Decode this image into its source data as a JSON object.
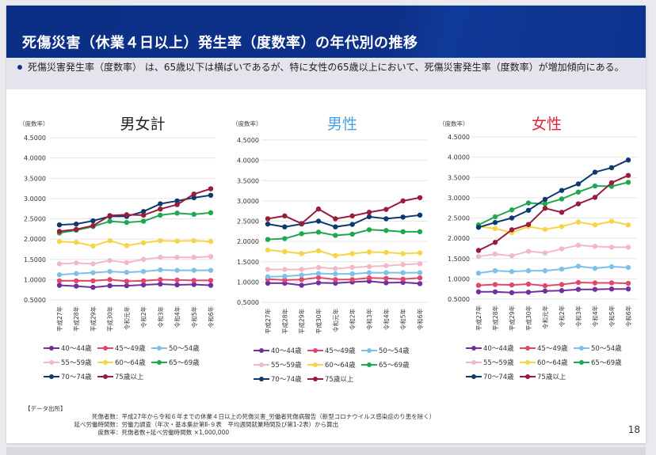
{
  "header": {
    "title": "死傷災害（休業４日以上）発生率（度数率）の年代別の推移"
  },
  "summary": {
    "text": "死傷災害発生率（度数率） は、65歳以下は横ばいであるが、特に女性の65歳以上において、死傷災害発生率（度数率）が増加傾向にある。"
  },
  "colors": {
    "header_bg": "#0d2f88",
    "title_total": "#222222",
    "title_male": "#4a9fe0",
    "title_female": "#e0243c"
  },
  "chart_data": [
    {
      "type": "line",
      "title": "男女計",
      "ylabel": "（度数率）",
      "xlabel": "",
      "ylim": [
        0.5,
        4.5
      ],
      "yticks": [
        "4.5000",
        "4.0000",
        "3.5000",
        "3.0000",
        "2.5000",
        "2.0000",
        "1.5000",
        "1.0000",
        "0.5000"
      ],
      "grid": true,
      "legend": "bottom",
      "categories": [
        "平成27年",
        "平成28年",
        "平成29年",
        "平成30年",
        "令和元年",
        "令和2年",
        "令和3年",
        "令和4年",
        "令和5年",
        "令和6年"
      ],
      "series": [
        {
          "name": "40～44歳",
          "color": "#7030a0",
          "values": [
            0.86,
            0.84,
            0.81,
            0.85,
            0.85,
            0.87,
            0.89,
            0.87,
            0.88,
            0.86
          ]
        },
        {
          "name": "45～49歳",
          "color": "#e0476b",
          "values": [
            0.97,
            0.97,
            0.97,
            1.0,
            0.96,
            0.97,
            1.0,
            0.99,
            0.98,
            0.98
          ]
        },
        {
          "name": "50～54歳",
          "color": "#7ec0ea",
          "values": [
            1.12,
            1.15,
            1.17,
            1.2,
            1.18,
            1.2,
            1.24,
            1.23,
            1.23,
            1.23
          ]
        },
        {
          "name": "55～59歳",
          "color": "#f2b8c8",
          "values": [
            1.39,
            1.41,
            1.39,
            1.47,
            1.42,
            1.5,
            1.55,
            1.55,
            1.55,
            1.57
          ]
        },
        {
          "name": "60～64歳",
          "color": "#f5d547",
          "values": [
            1.94,
            1.92,
            1.83,
            1.96,
            1.84,
            1.91,
            1.96,
            1.95,
            1.96,
            1.94
          ]
        },
        {
          "name": "65～69歳",
          "color": "#1fa84f",
          "values": [
            2.15,
            2.22,
            2.31,
            2.44,
            2.41,
            2.44,
            2.59,
            2.64,
            2.61,
            2.65
          ]
        },
        {
          "name": "70～74歳",
          "color": "#0d3a6e",
          "values": [
            2.35,
            2.37,
            2.45,
            2.56,
            2.56,
            2.68,
            2.87,
            2.94,
            3.02,
            3.08
          ]
        },
        {
          "name": "75歳以上",
          "color": "#9b1b3c",
          "values": [
            2.19,
            2.24,
            2.33,
            2.58,
            2.6,
            2.59,
            2.74,
            2.85,
            3.11,
            3.24
          ]
        }
      ]
    },
    {
      "type": "line",
      "title": "男性",
      "ylabel": "（度数率）",
      "xlabel": "",
      "ylim": [
        0.5,
        4.5
      ],
      "yticks": [
        "4.5000",
        "4.0000",
        "3.5000",
        "3.0000",
        "2.5000",
        "2.0000",
        "1.5000",
        "1.0000",
        "0.5000"
      ],
      "grid": true,
      "legend": "bottom",
      "categories": [
        "平成27年",
        "平成28年",
        "平成29年",
        "平成30年",
        "令和元年",
        "令和2年",
        "令和3年",
        "令和4年",
        "令和5年",
        "令和6年"
      ],
      "series": [
        {
          "name": "40～44歳",
          "color": "#7030a0",
          "values": [
            0.97,
            0.97,
            0.92,
            0.98,
            0.97,
            1.0,
            1.02,
            0.98,
            0.99,
            0.96
          ]
        },
        {
          "name": "45～49歳",
          "color": "#e0476b",
          "values": [
            1.07,
            1.05,
            1.06,
            1.11,
            1.06,
            1.06,
            1.1,
            1.09,
            1.07,
            1.1
          ]
        },
        {
          "name": "50～54歳",
          "color": "#7ec0ea",
          "values": [
            1.13,
            1.14,
            1.17,
            1.21,
            1.2,
            1.2,
            1.23,
            1.23,
            1.23,
            1.23
          ]
        },
        {
          "name": "55～59歳",
          "color": "#f2b8c8",
          "values": [
            1.31,
            1.31,
            1.31,
            1.36,
            1.33,
            1.36,
            1.38,
            1.4,
            1.43,
            1.45
          ]
        },
        {
          "name": "60～64歳",
          "color": "#f5d547",
          "values": [
            1.79,
            1.75,
            1.7,
            1.77,
            1.65,
            1.7,
            1.74,
            1.73,
            1.7,
            1.72
          ]
        },
        {
          "name": "65～69歳",
          "color": "#1fa84f",
          "values": [
            2.05,
            2.07,
            2.19,
            2.23,
            2.15,
            2.18,
            2.29,
            2.27,
            2.24,
            2.24
          ]
        },
        {
          "name": "70～74歳",
          "color": "#0d3a6e",
          "values": [
            2.43,
            2.36,
            2.43,
            2.5,
            2.36,
            2.42,
            2.61,
            2.56,
            2.6,
            2.65
          ]
        },
        {
          "name": "75歳以上",
          "color": "#9b1b3c",
          "values": [
            2.56,
            2.63,
            2.44,
            2.8,
            2.56,
            2.63,
            2.72,
            2.79,
            3.0,
            3.08
          ]
        }
      ]
    },
    {
      "type": "line",
      "title": "女性",
      "ylabel": "（度数率）",
      "xlabel": "",
      "ylim": [
        0.5,
        4.5
      ],
      "yticks": [
        "4.5000",
        "4.0000",
        "3.5000",
        "3.0000",
        "2.5000",
        "2.0000",
        "1.5000",
        "1.0000",
        "0.5000"
      ],
      "grid": true,
      "legend": "bottom",
      "categories": [
        "平成27年",
        "平成28年",
        "平成29年",
        "平成30年",
        "令和元年",
        "令和2年",
        "令和3年",
        "令和4年",
        "令和5年",
        "令和6年"
      ],
      "series": [
        {
          "name": "40～44歳",
          "color": "#7030a0",
          "values": [
            0.68,
            0.68,
            0.66,
            0.67,
            0.7,
            0.71,
            0.74,
            0.74,
            0.75,
            0.75
          ]
        },
        {
          "name": "45～49歳",
          "color": "#e0476b",
          "values": [
            0.84,
            0.86,
            0.85,
            0.87,
            0.83,
            0.86,
            0.91,
            0.9,
            0.9,
            0.89
          ]
        },
        {
          "name": "50～54歳",
          "color": "#7ec0ea",
          "values": [
            1.14,
            1.2,
            1.18,
            1.2,
            1.2,
            1.24,
            1.31,
            1.26,
            1.3,
            1.28
          ]
        },
        {
          "name": "55～59歳",
          "color": "#f2b8c8",
          "values": [
            1.55,
            1.61,
            1.57,
            1.68,
            1.64,
            1.74,
            1.83,
            1.8,
            1.78,
            1.78
          ]
        },
        {
          "name": "60～64歳",
          "color": "#f5d547",
          "values": [
            2.29,
            2.24,
            2.14,
            2.29,
            2.22,
            2.29,
            2.4,
            2.33,
            2.42,
            2.33
          ]
        },
        {
          "name": "65～69歳",
          "color": "#1fa84f",
          "values": [
            2.33,
            2.53,
            2.7,
            2.87,
            2.85,
            2.97,
            3.14,
            3.29,
            3.28,
            3.38
          ]
        },
        {
          "name": "70～74歳",
          "color": "#0d3a6e",
          "values": [
            2.27,
            2.39,
            2.5,
            2.69,
            2.96,
            3.18,
            3.34,
            3.63,
            3.74,
            3.93
          ]
        },
        {
          "name": "75歳以上",
          "color": "#9b1b3c",
          "values": [
            1.7,
            1.9,
            2.21,
            2.34,
            2.74,
            2.64,
            2.85,
            3.01,
            3.37,
            3.55
          ]
        }
      ]
    }
  ],
  "source": {
    "heading": "【データ出所】",
    "lines": [
      {
        "label": "死傷者数",
        "text": "：平成27年から令和６年までの休業４日以上の死傷災害_労働者死傷病報告（新型コロナウイルス感染症のり患を除く）"
      },
      {
        "label": "延べ労働時間数",
        "text": "：労働力調査（年次・基本集計第Ⅱ-９表　平均週間就業時間及び第1-2表）から算出"
      },
      {
        "label": "度数率",
        "text": "：死傷者数÷延べ労働時間数 ×1,000,000"
      }
    ]
  },
  "page_number": "18"
}
